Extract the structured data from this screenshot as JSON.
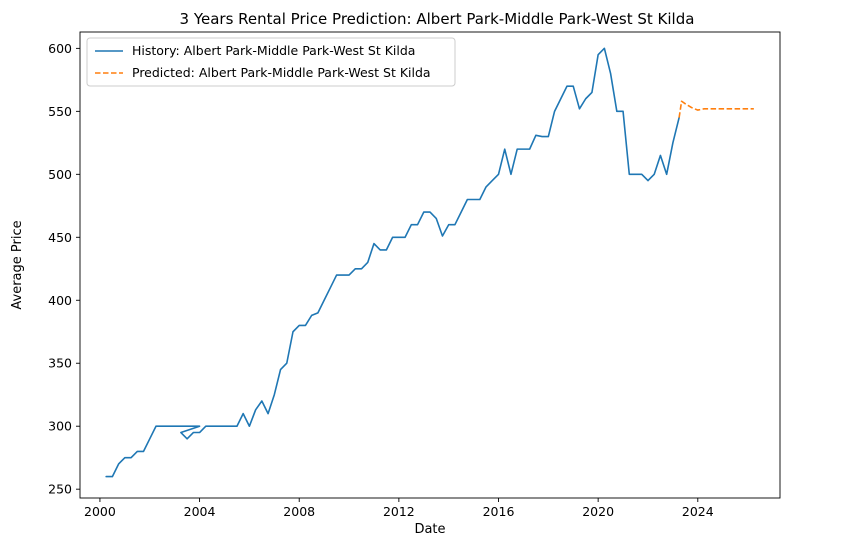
{
  "chart_data": {
    "type": "line",
    "title": "3 Years Rental Price Prediction: Albert Park-Middle Park-West St Kilda",
    "xlabel": "Date",
    "ylabel": "Average Price",
    "xlim": [
      1999.2,
      2027.3
    ],
    "ylim": [
      243,
      613
    ],
    "xticks": [
      2000,
      2004,
      2008,
      2012,
      2016,
      2020,
      2024
    ],
    "yticks": [
      250,
      300,
      350,
      400,
      450,
      500,
      550,
      600
    ],
    "grid": false,
    "legend_position": "upper left",
    "series": [
      {
        "name": "History: Albert Park-Middle Park-West St Kilda",
        "color": "#1f77b4",
        "style": "solid",
        "x": [
          2000.25,
          2000.5,
          2000.75,
          2001.0,
          2001.25,
          2001.5,
          2001.75,
          2002.0,
          2002.25,
          2002.5,
          2002.75,
          2003.0,
          2003.25,
          2003.5,
          2003.75,
          2004.0,
          2003.25,
          2003.5,
          2003.75,
          2004.0,
          2004.25,
          2004.5,
          2004.75,
          2005.0,
          2005.25,
          2005.5,
          2005.75,
          2006.0,
          2006.25,
          2006.5,
          2006.75,
          2007.0,
          2007.25,
          2007.5,
          2007.75,
          2008.0,
          2008.25,
          2008.5,
          2008.75,
          2009.0,
          2009.25,
          2009.5,
          2009.75,
          2010.0,
          2010.25,
          2010.5,
          2010.75,
          2011.0,
          2011.25,
          2011.5,
          2011.75,
          2012.0,
          2012.25,
          2012.5,
          2012.75,
          2013.0,
          2013.25,
          2013.5,
          2013.75,
          2014.0,
          2014.25,
          2014.5,
          2014.75,
          2015.0,
          2015.25,
          2015.5,
          2015.75,
          2016.0,
          2016.25,
          2016.5,
          2016.75,
          2017.0,
          2017.25,
          2017.5,
          2017.75,
          2018.0,
          2018.25,
          2018.5,
          2018.75,
          2019.0,
          2019.25,
          2019.5,
          2019.75,
          2020.0,
          2020.25,
          2020.5,
          2020.75,
          2021.0,
          2021.25,
          2021.5,
          2021.75,
          2022.0,
          2022.25,
          2022.5,
          2022.75,
          2023.0,
          2023.25
        ],
        "y": [
          260,
          260,
          270,
          275,
          275,
          280,
          280,
          290,
          300,
          300,
          300,
          300,
          300,
          300,
          300,
          300,
          295,
          290,
          295,
          295,
          300,
          300,
          300,
          300,
          300,
          300,
          310,
          300,
          313,
          320,
          310,
          325,
          345,
          350,
          375,
          380,
          380,
          388,
          390,
          400,
          410,
          420,
          420,
          420,
          425,
          425,
          430,
          445,
          440,
          440,
          450,
          450,
          450,
          460,
          460,
          470,
          470,
          465,
          451,
          460,
          460,
          470,
          480,
          480,
          480,
          490,
          495,
          500,
          520,
          500,
          520,
          520,
          520,
          531,
          530,
          530,
          550,
          560,
          570,
          570,
          552,
          560,
          565,
          595,
          600,
          580,
          550,
          550,
          500,
          500,
          500,
          495,
          500,
          515,
          500,
          525,
          545
        ]
      },
      {
        "name": "Predicted: Albert Park-Middle Park-West St Kilda",
        "color": "#ff7f0e",
        "style": "dashed",
        "x": [
          2023.25,
          2023.35,
          2023.5,
          2023.75,
          2024.0,
          2024.25,
          2024.5,
          2025.0,
          2025.5,
          2026.0,
          2026.25
        ],
        "y": [
          545,
          558,
          556,
          553,
          551,
          552,
          552,
          552,
          552,
          552,
          552
        ]
      }
    ]
  }
}
